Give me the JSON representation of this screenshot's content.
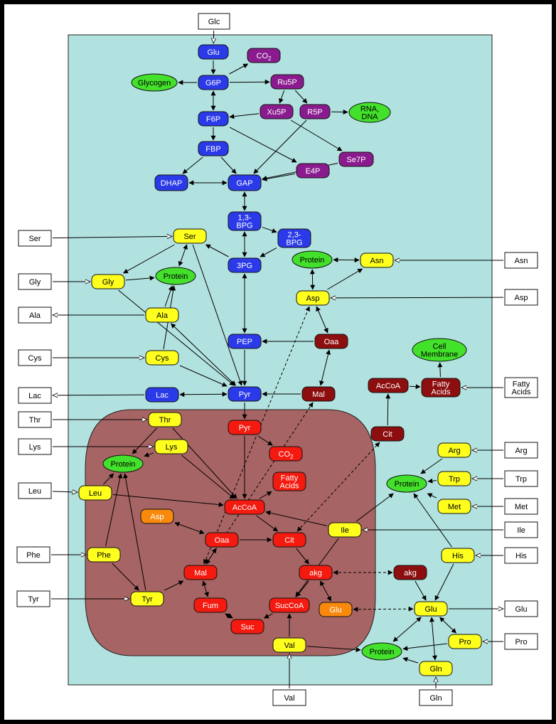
{
  "nodes": [
    {
      "id": "glc_ext",
      "label": "Glc",
      "kind": "box"
    },
    {
      "id": "ser_ext",
      "label": "Ser",
      "kind": "box"
    },
    {
      "id": "gly_ext",
      "label": "Gly",
      "kind": "box"
    },
    {
      "id": "ala_ext",
      "label": "Ala",
      "kind": "box"
    },
    {
      "id": "cys_ext",
      "label": "Cys",
      "kind": "box"
    },
    {
      "id": "lac_ext",
      "label": "Lac",
      "kind": "box"
    },
    {
      "id": "thr_ext",
      "label": "Thr",
      "kind": "box"
    },
    {
      "id": "lys_ext",
      "label": "Lys",
      "kind": "box"
    },
    {
      "id": "leu_ext",
      "label": "Leu",
      "kind": "box"
    },
    {
      "id": "phe_ext",
      "label": "Phe",
      "kind": "box"
    },
    {
      "id": "tyr_ext",
      "label": "Tyr",
      "kind": "box"
    },
    {
      "id": "val_ext",
      "label": "Val",
      "kind": "box"
    },
    {
      "id": "gln_ext",
      "label": "Gln",
      "kind": "box"
    },
    {
      "id": "asn_ext",
      "label": "Asn",
      "kind": "box"
    },
    {
      "id": "asp_ext",
      "label": "Asp",
      "kind": "box"
    },
    {
      "id": "fa_ext",
      "label": "Fatty\nAcids",
      "kind": "box"
    },
    {
      "id": "arg_ext",
      "label": "Arg",
      "kind": "box"
    },
    {
      "id": "trp_ext",
      "label": "Trp",
      "kind": "box"
    },
    {
      "id": "met_ext",
      "label": "Met",
      "kind": "box"
    },
    {
      "id": "ile_ext",
      "label": "Ile",
      "kind": "box"
    },
    {
      "id": "his_ext",
      "label": "His",
      "kind": "box"
    },
    {
      "id": "glu_ext",
      "label": "Glu",
      "kind": "box"
    },
    {
      "id": "pro_ext",
      "label": "Pro",
      "kind": "box"
    },
    {
      "id": "glu_c",
      "label": "Glu",
      "kind": "blue"
    },
    {
      "id": "g6p",
      "label": "G6P",
      "kind": "blue"
    },
    {
      "id": "f6p",
      "label": "F6P",
      "kind": "blue"
    },
    {
      "id": "fbp",
      "label": "FBP",
      "kind": "blue"
    },
    {
      "id": "dhap",
      "label": "DHAP",
      "kind": "blue"
    },
    {
      "id": "gap",
      "label": "GAP",
      "kind": "blue"
    },
    {
      "id": "bpg13",
      "label": "1,3-\nBPG",
      "kind": "blue"
    },
    {
      "id": "bpg23",
      "label": "2,3-\nBPG",
      "kind": "blue"
    },
    {
      "id": "pg3",
      "label": "3PG",
      "kind": "blue"
    },
    {
      "id": "pep",
      "label": "PEP",
      "kind": "blue"
    },
    {
      "id": "pyr_c",
      "label": "Pyr",
      "kind": "blue"
    },
    {
      "id": "lac_c",
      "label": "Lac",
      "kind": "blue"
    },
    {
      "id": "co2_c",
      "label": "CO2",
      "kind": "purple"
    },
    {
      "id": "ru5p",
      "label": "Ru5P",
      "kind": "purple"
    },
    {
      "id": "xu5p",
      "label": "Xu5P",
      "kind": "purple"
    },
    {
      "id": "r5p",
      "label": "R5P",
      "kind": "purple"
    },
    {
      "id": "e4p",
      "label": "E4P",
      "kind": "purple"
    },
    {
      "id": "se7p",
      "label": "Se7P",
      "kind": "purple"
    },
    {
      "id": "glycogen",
      "label": "Glycogen",
      "kind": "green"
    },
    {
      "id": "rna",
      "label": "RNA,\nDNA",
      "kind": "green"
    },
    {
      "id": "prot1",
      "label": "Protein",
      "kind": "green"
    },
    {
      "id": "prot2",
      "label": "Protein",
      "kind": "green"
    },
    {
      "id": "cellmem",
      "label": "Cell\nMembrane",
      "kind": "green"
    },
    {
      "id": "prot3",
      "label": "Protein",
      "kind": "green"
    },
    {
      "id": "prot4",
      "label": "Protein",
      "kind": "green"
    },
    {
      "id": "prot5",
      "label": "Protein",
      "kind": "green"
    },
    {
      "id": "ser_c",
      "label": "Ser",
      "kind": "yellow"
    },
    {
      "id": "gly_c",
      "label": "Gly",
      "kind": "yellow"
    },
    {
      "id": "ala_c",
      "label": "Ala",
      "kind": "yellow"
    },
    {
      "id": "cys_c",
      "label": "Cys",
      "kind": "yellow"
    },
    {
      "id": "asn_c",
      "label": "Asn",
      "kind": "yellow"
    },
    {
      "id": "asp_c",
      "label": "Asp",
      "kind": "yellow"
    },
    {
      "id": "thr_c",
      "label": "Thr",
      "kind": "yellow"
    },
    {
      "id": "lys_c",
      "label": "Lys",
      "kind": "yellow"
    },
    {
      "id": "leu_c",
      "label": "Leu",
      "kind": "yellow"
    },
    {
      "id": "phe_c",
      "label": "Phe",
      "kind": "yellow"
    },
    {
      "id": "tyr_c",
      "label": "Tyr",
      "kind": "yellow"
    },
    {
      "id": "val_c",
      "label": "Val",
      "kind": "yellow"
    },
    {
      "id": "ile_c",
      "label": "Ile",
      "kind": "yellow"
    },
    {
      "id": "arg_c",
      "label": "Arg",
      "kind": "yellow"
    },
    {
      "id": "trp_c",
      "label": "Trp",
      "kind": "yellow"
    },
    {
      "id": "met_c",
      "label": "Met",
      "kind": "yellow"
    },
    {
      "id": "his_c",
      "label": "His",
      "kind": "yellow"
    },
    {
      "id": "glu_cy",
      "label": "Glu",
      "kind": "yellow"
    },
    {
      "id": "pro_c",
      "label": "Pro",
      "kind": "yellow"
    },
    {
      "id": "gln_c",
      "label": "Gln",
      "kind": "yellow"
    },
    {
      "id": "oaa_c",
      "label": "Oaa",
      "kind": "darkred"
    },
    {
      "id": "mal_c",
      "label": "Mal",
      "kind": "darkred"
    },
    {
      "id": "acoa_c",
      "label": "AcCoA",
      "kind": "darkred"
    },
    {
      "id": "fa_c",
      "label": "Fatty\nAcids",
      "kind": "darkred"
    },
    {
      "id": "cit_c",
      "label": "Cit",
      "kind": "darkred"
    },
    {
      "id": "akg_c",
      "label": "akg",
      "kind": "darkred"
    },
    {
      "id": "pyr_m",
      "label": "Pyr",
      "kind": "red"
    },
    {
      "id": "co2_m",
      "label": "CO2",
      "kind": "red"
    },
    {
      "id": "fa_m",
      "label": "Fatty\nAcids",
      "kind": "red"
    },
    {
      "id": "acoa_m",
      "label": "AcCoA",
      "kind": "red"
    },
    {
      "id": "oaa_m",
      "label": "Oaa",
      "kind": "red"
    },
    {
      "id": "cit_m",
      "label": "Cit",
      "kind": "red"
    },
    {
      "id": "mal_m",
      "label": "Mal",
      "kind": "red"
    },
    {
      "id": "akg_m",
      "label": "akg",
      "kind": "red"
    },
    {
      "id": "fum_m",
      "label": "Fum",
      "kind": "red"
    },
    {
      "id": "succoa_m",
      "label": "SucCoA",
      "kind": "red"
    },
    {
      "id": "suc_m",
      "label": "Suc",
      "kind": "red"
    },
    {
      "id": "asp_m",
      "label": "Asp",
      "kind": "orange"
    },
    {
      "id": "glu_m",
      "label": "Glu",
      "kind": "orange"
    }
  ],
  "colors": {
    "cell": "#b2e2df",
    "mito": "#a76464",
    "blue": "#2b3ae8",
    "purple": "#8a1b8e",
    "green": "#43e12b",
    "yellow": "#ffff1e",
    "darkred": "#8d0e0e",
    "red": "#f41a0f",
    "orange": "#f8890d",
    "box": "#ffffff"
  },
  "edges": [
    [
      "glc_ext",
      "glu_c",
      "o"
    ],
    [
      "glu_c",
      "g6p",
      "f"
    ],
    [
      "g6p",
      "glycogen",
      "f"
    ],
    [
      "g6p",
      "ru5p",
      "f"
    ],
    [
      "g6p",
      "co2_c",
      "f"
    ],
    [
      "ru5p",
      "xu5p",
      "f"
    ],
    [
      "ru5p",
      "r5p",
      "f"
    ],
    [
      "r5p",
      "rna",
      "f"
    ],
    [
      "g6p",
      "f6p",
      "b"
    ],
    [
      "f6p",
      "fbp",
      "f"
    ],
    [
      "fbp",
      "gap",
      "f"
    ],
    [
      "fbp",
      "dhap",
      "f"
    ],
    [
      "dhap",
      "gap",
      "b"
    ],
    [
      "gap",
      "bpg13",
      "b"
    ],
    [
      "bpg13",
      "pg3",
      "b"
    ],
    [
      "bpg13",
      "bpg23",
      "f"
    ],
    [
      "bpg23",
      "pg3",
      "f"
    ],
    [
      "pg3",
      "pep",
      "b"
    ],
    [
      "pep",
      "pyr_c",
      "f"
    ],
    [
      "pyr_c",
      "lac_c",
      "b"
    ],
    [
      "lac_c",
      "lac_ext",
      "o"
    ],
    [
      "xu5p",
      "f6p",
      "f"
    ],
    [
      "r5p",
      "gap",
      "f"
    ],
    [
      "xu5p",
      "se7p",
      "f"
    ],
    [
      "f6p",
      "e4p",
      "f"
    ],
    [
      "e4p",
      "gap",
      "f"
    ],
    [
      "se7p",
      "gap",
      "f"
    ],
    [
      "ser_ext",
      "ser_c",
      "o"
    ],
    [
      "gly_ext",
      "gly_c",
      "o"
    ],
    [
      "ala_c",
      "ala_ext",
      "o"
    ],
    [
      "cys_ext",
      "cys_c",
      "o"
    ],
    [
      "pg3",
      "ser_c",
      "f"
    ],
    [
      "ser_c",
      "gly_c",
      "f"
    ],
    [
      "ser_c",
      "prot1",
      "b"
    ],
    [
      "gly_c",
      "prot1",
      "f"
    ],
    [
      "ala_c",
      "prot1",
      "f"
    ],
    [
      "cys_c",
      "prot1",
      "f"
    ],
    [
      "ser_c",
      "pyr_c",
      "f"
    ],
    [
      "ala_c",
      "pyr_c",
      "b"
    ],
    [
      "cys_c",
      "pyr_c",
      "f"
    ],
    [
      "gly_c",
      "pyr_c",
      "f"
    ],
    [
      "asn_ext",
      "asn_c",
      "o"
    ],
    [
      "asp_ext",
      "asp_c",
      "o"
    ],
    [
      "asn_c",
      "prot2",
      "b"
    ],
    [
      "prot2",
      "asp_c",
      "b"
    ],
    [
      "asp_c",
      "asn_c",
      "f"
    ],
    [
      "asp_c",
      "oaa_c",
      "b"
    ],
    [
      "oaa_c",
      "pep",
      "f"
    ],
    [
      "mal_c",
      "oaa_c",
      "b"
    ],
    [
      "mal_c",
      "pyr_c",
      "f"
    ],
    [
      "fa_ext",
      "fa_c",
      "o"
    ],
    [
      "acoa_c",
      "fa_c",
      "f"
    ],
    [
      "fa_c",
      "cellmem",
      "f"
    ],
    [
      "cit_c",
      "acoa_c",
      "f"
    ],
    [
      "thr_ext",
      "thr_c",
      "o"
    ],
    [
      "lys_ext",
      "lys_c",
      "o"
    ],
    [
      "leu_ext",
      "leu_c",
      "o"
    ],
    [
      "phe_ext",
      "phe_c",
      "o"
    ],
    [
      "tyr_ext",
      "tyr_c",
      "o"
    ],
    [
      "val_ext",
      "val_c",
      "o"
    ],
    [
      "pyr_c",
      "pyr_m",
      "f"
    ],
    [
      "pyr_m",
      "acoa_m",
      "f"
    ],
    [
      "pyr_m",
      "co2_m",
      "f"
    ],
    [
      "acoa_m",
      "fa_m",
      "f"
    ],
    [
      "acoa_m",
      "cit_m",
      "f"
    ],
    [
      "oaa_m",
      "cit_m",
      "f"
    ],
    [
      "cit_m",
      "akg_m",
      "f"
    ],
    [
      "akg_m",
      "succoa_m",
      "f"
    ],
    [
      "succoa_m",
      "suc_m",
      "f"
    ],
    [
      "suc_m",
      "fum_m",
      "b"
    ],
    [
      "fum_m",
      "mal_m",
      "b"
    ],
    [
      "mal_m",
      "oaa_m",
      "b"
    ],
    [
      "asp_m",
      "oaa_m",
      "b"
    ],
    [
      "akg_m",
      "glu_m",
      "b"
    ],
    [
      "thr_c",
      "acoa_m",
      "f"
    ],
    [
      "lys_c",
      "acoa_m",
      "f"
    ],
    [
      "leu_c",
      "acoa_m",
      "f"
    ],
    [
      "phe_c",
      "tyr_c",
      "f"
    ],
    [
      "tyr_c",
      "mal_m",
      "f"
    ],
    [
      "thr_c",
      "prot3",
      "f"
    ],
    [
      "lys_c",
      "prot3",
      "f"
    ],
    [
      "leu_c",
      "prot3",
      "f"
    ],
    [
      "phe_c",
      "prot3",
      "f"
    ],
    [
      "tyr_c",
      "prot3",
      "f"
    ],
    [
      "val_c",
      "succoa_m",
      "f"
    ],
    [
      "ile_c",
      "succoa_m",
      "f"
    ],
    [
      "ile_c",
      "acoa_m",
      "f"
    ],
    [
      "arg_ext",
      "arg_c",
      "o"
    ],
    [
      "trp_ext",
      "trp_c",
      "o"
    ],
    [
      "met_ext",
      "met_c",
      "o"
    ],
    [
      "ile_ext",
      "ile_c",
      "o"
    ],
    [
      "his_ext",
      "his_c",
      "o"
    ],
    [
      "glu_cy",
      "glu_ext",
      "o"
    ],
    [
      "pro_ext",
      "pro_c",
      "o"
    ],
    [
      "gln_ext",
      "gln_c",
      "o"
    ],
    [
      "arg_c",
      "prot4",
      "f"
    ],
    [
      "trp_c",
      "prot4",
      "f"
    ],
    [
      "met_c",
      "prot4",
      "f"
    ],
    [
      "his_c",
      "prot4",
      "f"
    ],
    [
      "ile_c",
      "prot4",
      "f"
    ],
    [
      "his_c",
      "glu_cy",
      "f"
    ],
    [
      "glu_cy",
      "pro_c",
      "b"
    ],
    [
      "glu_cy",
      "gln_c",
      "b"
    ],
    [
      "glu_cy",
      "prot5",
      "b"
    ],
    [
      "pro_c",
      "prot5",
      "f"
    ],
    [
      "gln_c",
      "prot5",
      "f"
    ],
    [
      "val_c",
      "prot5",
      "f"
    ],
    [
      "akg_c",
      "glu_cy",
      "f"
    ]
  ],
  "dashed": [
    [
      "akg_m",
      "akg_c"
    ],
    [
      "glu_m",
      "glu_cy"
    ],
    [
      "mal_m",
      "asp_c"
    ],
    [
      "cit_m",
      "cit_c"
    ],
    [
      "mal_c",
      "mal_m"
    ]
  ]
}
